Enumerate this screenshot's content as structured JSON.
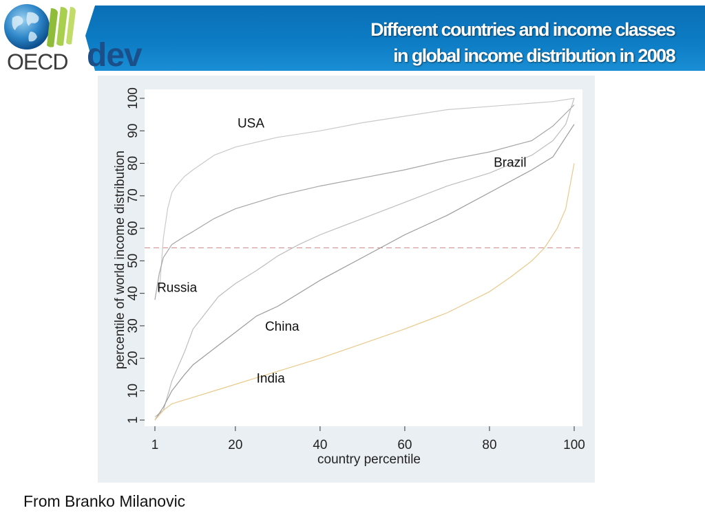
{
  "header": {
    "title_line1": "Different countries and income classes",
    "title_line2": "in global income distribution in 2008"
  },
  "logo": {
    "org": "OECD",
    "sub": "dev"
  },
  "credit": "From Branko Milanovic",
  "colors": {
    "header_blue": "#0c7cc4",
    "panel_bg": "#e9eff2",
    "plot_bg": "#ffffff",
    "usa": "#c9c9c9",
    "russia": "#bdbdbd",
    "brazil": "#a6a6a6",
    "china": "#9a9a9a",
    "india": "#e8c98a",
    "reference_line": "#d28b8b"
  },
  "chart_data": {
    "type": "line",
    "title": "",
    "xlabel": "country percentile",
    "ylabel": "percentile of world income distribution",
    "xlim": [
      1,
      100
    ],
    "ylim": [
      1,
      100
    ],
    "x_ticks": [
      "1",
      "20",
      "40",
      "60",
      "80",
      "100"
    ],
    "x_tick_values": [
      1,
      20,
      40,
      60,
      80,
      100
    ],
    "y_ticks": [
      "1",
      "10",
      "20",
      "30",
      "40",
      "50",
      "60",
      "70",
      "80",
      "90",
      "100"
    ],
    "y_tick_values": [
      1,
      10,
      20,
      30,
      40,
      50,
      60,
      70,
      80,
      90,
      100
    ],
    "grid": false,
    "reference_line": {
      "y": 54,
      "style": "dashed"
    },
    "series": [
      {
        "name": "USA",
        "x": [
          2,
          3,
          4,
          5,
          6,
          8,
          10,
          15,
          20,
          30,
          40,
          50,
          60,
          70,
          80,
          90,
          95,
          100
        ],
        "y": [
          40,
          57,
          66,
          71,
          73,
          76,
          78,
          82.5,
          85,
          88,
          90,
          92.5,
          94.5,
          96.5,
          97.5,
          98.5,
          99,
          100
        ]
      },
      {
        "name": "Brazil",
        "x": [
          1,
          2,
          3,
          5,
          8,
          10,
          15,
          20,
          30,
          40,
          50,
          60,
          70,
          80,
          90,
          95,
          100
        ],
        "y": [
          38,
          46,
          51,
          55,
          57.5,
          59,
          63,
          66,
          70,
          73,
          75.5,
          78,
          81,
          83.5,
          87,
          91.5,
          98
        ]
      },
      {
        "name": "Russia",
        "x": [
          1,
          3,
          5,
          8,
          10,
          13,
          16,
          20,
          25,
          30,
          35,
          40,
          50,
          60,
          70,
          80,
          90,
          95,
          98,
          100
        ],
        "y": [
          2,
          4,
          13,
          22,
          29,
          34,
          39,
          43,
          47,
          51.5,
          55,
          58,
          63,
          68,
          73,
          77,
          82.5,
          87,
          92,
          100
        ]
      },
      {
        "name": "China",
        "x": [
          1,
          3,
          5,
          8,
          10,
          15,
          20,
          25,
          30,
          35,
          40,
          50,
          60,
          70,
          80,
          90,
          95,
          100
        ],
        "y": [
          1,
          5,
          10,
          15,
          18,
          23,
          28,
          33,
          36,
          40,
          44,
          51,
          58,
          64,
          71,
          78,
          82,
          92
        ]
      },
      {
        "name": "India",
        "x": [
          1,
          3,
          5,
          10,
          15,
          20,
          30,
          40,
          50,
          60,
          70,
          80,
          85,
          90,
          93,
          96,
          98,
          100
        ],
        "y": [
          1,
          4,
          6,
          8,
          10,
          12,
          16,
          20,
          24.5,
          29,
          34,
          40.5,
          45,
          50,
          54,
          60,
          66,
          80
        ]
      }
    ],
    "annotations": [
      {
        "text": "USA",
        "x": 20.5,
        "y": 91
      },
      {
        "text": "Brazil",
        "x": 81,
        "y": 79
      },
      {
        "text": "Russia",
        "x": 1.5,
        "y": 40.5
      },
      {
        "text": "China",
        "x": 27,
        "y": 28.5
      },
      {
        "text": "India",
        "x": 25,
        "y": 12.5
      }
    ]
  }
}
